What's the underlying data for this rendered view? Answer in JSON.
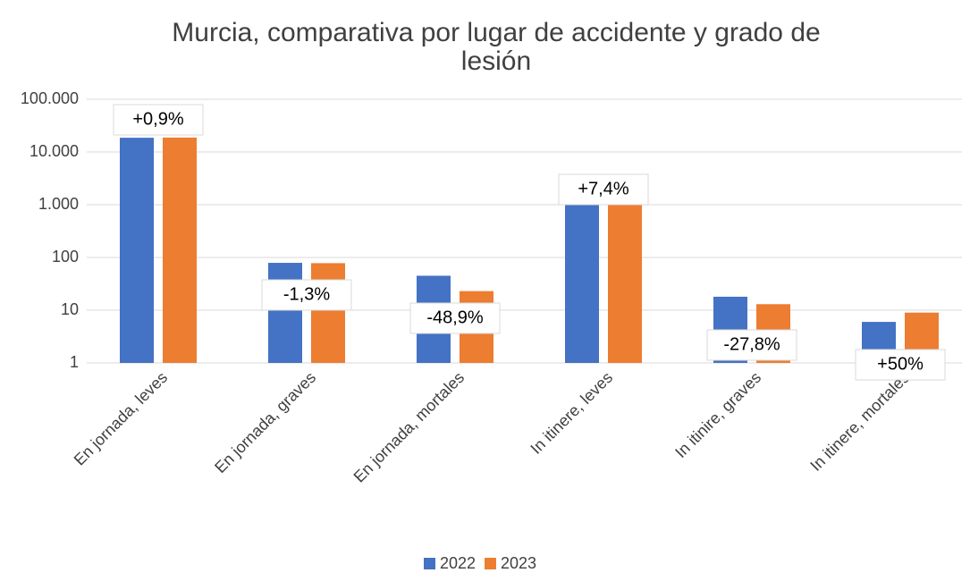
{
  "chart_data": {
    "type": "bar",
    "title": [
      "Murcia, comparativa por lugar de accidente y grado de",
      "lesión"
    ],
    "categories": [
      "En jornada, leves",
      "En jornada, graves",
      "En jornada, mortales",
      "In itinere, leves",
      "In itinire, graves",
      "In itinere, mortales"
    ],
    "series": [
      {
        "name": "2022",
        "color": "#4472c4",
        "values": [
          18600,
          79,
          45,
          1080,
          18,
          6
        ]
      },
      {
        "name": "2023",
        "color": "#ed7d31",
        "values": [
          18770,
          78,
          23,
          1160,
          13,
          9
        ]
      }
    ],
    "annotations": [
      "+0,9%",
      "-1,3%",
      "-48,9%",
      "+7,4%",
      "-27,8%",
      "+50%"
    ],
    "log_scale": true,
    "ylim": [
      1,
      100000
    ],
    "yticks": [
      1,
      10,
      100,
      {
        "value": 1000,
        "label": "1.000"
      },
      {
        "value": 10000,
        "label": "10.000"
      },
      {
        "value": 100000,
        "label": "100.000"
      }
    ],
    "grid": true,
    "legend": "bottom"
  }
}
